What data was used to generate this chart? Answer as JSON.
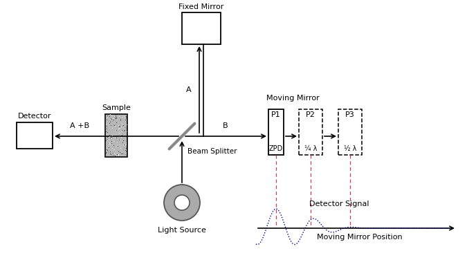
{
  "bg_color": "#ffffff",
  "line_color": "#000000",
  "gray_color": "#888888",
  "wave_color": "#00008B",
  "dashed_color": "#C04060",
  "fixed_mirror_label": "Fixed Mirror",
  "moving_mirror_label": "Moving Mirror",
  "sample_label": "Sample",
  "detector_label": "Detector",
  "beam_splitter_label": "Beam Splitter",
  "light_source_label": "Light Source",
  "zpd_label": "ZPD",
  "p1_label": "P1",
  "p2_label": "P2",
  "p3_label": "P3",
  "quarter_label": "¼ λ",
  "half_label": "½ λ",
  "a_label": "A",
  "b_label": "B",
  "apb_label": "A +B",
  "detector_signal_label": "Detector Signal",
  "mirror_pos_label": "Moving Mirror Position",
  "figw": 6.75,
  "figh": 3.76,
  "dpi": 100
}
